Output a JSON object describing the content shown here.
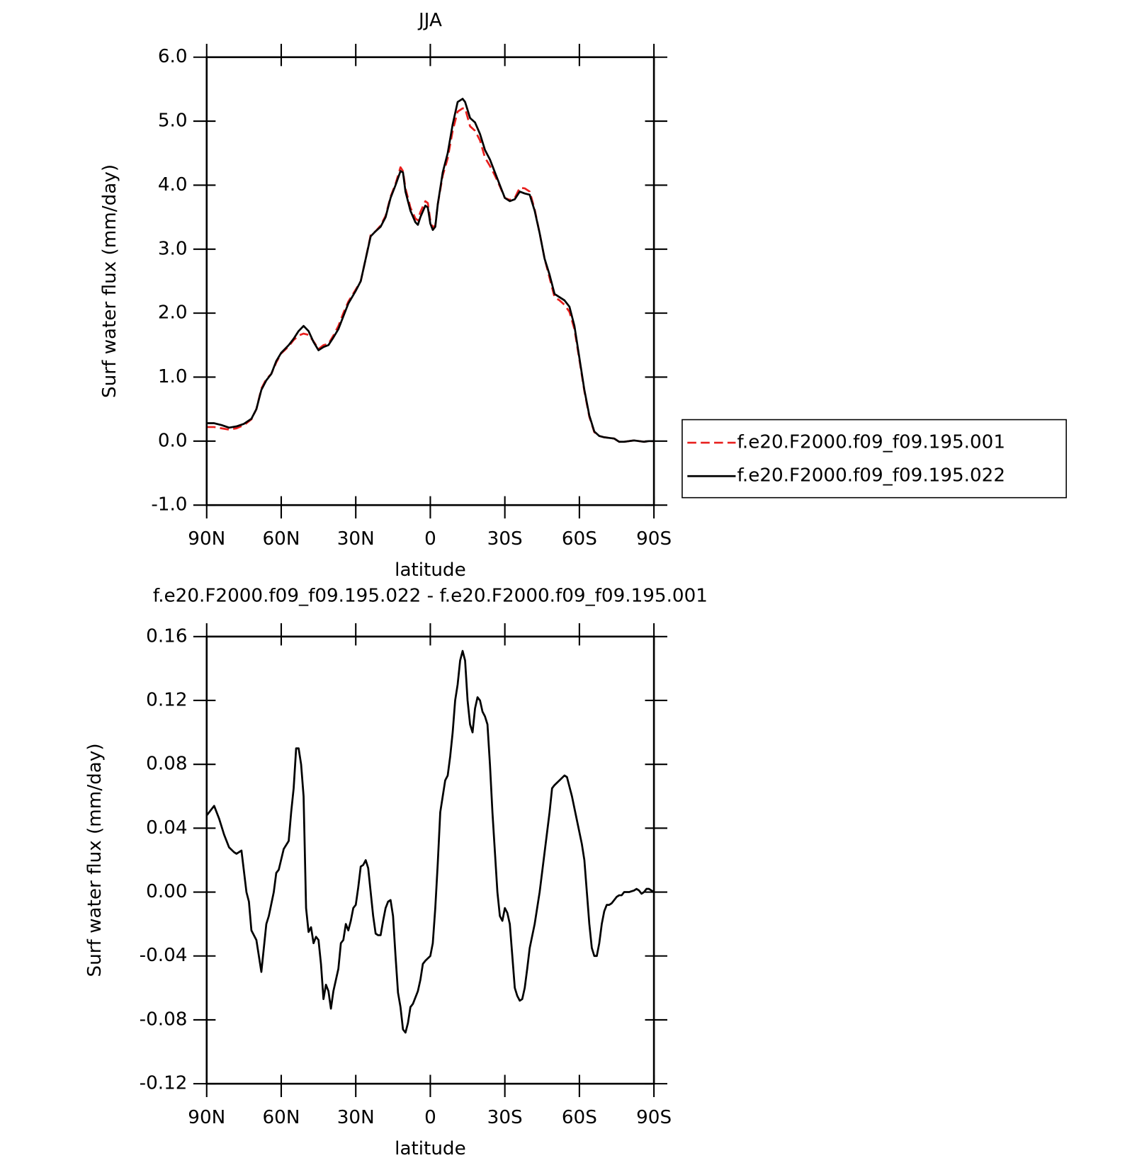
{
  "chart_data": [
    {
      "type": "line",
      "title": "JJA",
      "xlabel": "latitude",
      "ylabel": "Surf water flux (mm/day)",
      "xlim": [
        90,
        -90
      ],
      "xticks": [
        {
          "value": 90,
          "label": "90N"
        },
        {
          "value": 60,
          "label": "60N"
        },
        {
          "value": 30,
          "label": "30N"
        },
        0,
        {
          "value": -30,
          "label": "30S"
        },
        {
          "value": -60,
          "label": "60S"
        },
        {
          "value": -90,
          "label": "90S"
        }
      ],
      "ylim": [
        -1,
        6
      ],
      "yticks": [
        {
          "value": -1,
          "label": "-1.0"
        },
        {
          "value": 0,
          "label": "0.0"
        },
        {
          "value": 1,
          "label": "1.0"
        },
        {
          "value": 2,
          "label": "2.0"
        },
        {
          "value": 3,
          "label": "3.0"
        },
        {
          "value": 4,
          "label": "4.0"
        },
        {
          "value": 5,
          "label": "5.0"
        },
        {
          "value": 6,
          "label": "6.0"
        }
      ],
      "legend": "right",
      "x": [
        90,
        87,
        84,
        81,
        78,
        75,
        72,
        70,
        68,
        66,
        64,
        62,
        60,
        57,
        55,
        53,
        51,
        49,
        47,
        45,
        43,
        41,
        39,
        37,
        35,
        33,
        30,
        28,
        26,
        24,
        22,
        20,
        18,
        16,
        14,
        12,
        11,
        10,
        8,
        6,
        5,
        4,
        2,
        1,
        0,
        -1,
        -2,
        -3,
        -5,
        -7,
        -9,
        -11,
        -13,
        -14,
        -16,
        -18,
        -20,
        -22,
        -24,
        -26,
        -28,
        -30,
        -32,
        -34,
        -36,
        -38,
        -40,
        -42,
        -44,
        -46,
        -48,
        -50,
        -52,
        -54,
        -56,
        -58,
        -60,
        -62,
        -64,
        -66,
        -68,
        -70,
        -72,
        -74,
        -76,
        -78,
        -80,
        -82,
        -84,
        -86,
        -88,
        -90
      ],
      "series": [
        {
          "name": "f.e20.F2000.f09_f09.195.001",
          "color": "#e8201e",
          "linestyle": "dashed",
          "values": [
            0.22,
            0.22,
            0.2,
            0.18,
            0.2,
            0.25,
            0.34,
            0.5,
            0.82,
            0.97,
            1.05,
            1.23,
            1.37,
            1.48,
            1.58,
            1.65,
            1.68,
            1.66,
            1.56,
            1.44,
            1.5,
            1.52,
            1.65,
            1.8,
            2.0,
            2.18,
            2.37,
            2.5,
            2.85,
            3.22,
            3.28,
            3.37,
            3.52,
            3.82,
            4.02,
            4.28,
            4.22,
            3.95,
            3.65,
            3.48,
            3.45,
            3.58,
            3.75,
            3.72,
            3.45,
            3.34,
            3.37,
            3.7,
            4.15,
            4.42,
            4.85,
            5.15,
            5.2,
            5.2,
            4.92,
            4.85,
            4.7,
            4.43,
            4.3,
            4.15,
            3.98,
            3.8,
            3.77,
            3.8,
            3.96,
            3.95,
            3.9,
            3.62,
            3.25,
            2.85,
            2.55,
            2.25,
            2.2,
            2.13,
            2.02,
            1.75,
            1.27,
            0.78,
            0.38,
            0.14,
            0.08,
            0.06,
            0.05,
            0.04,
            -0.01,
            -0.01,
            0,
            0.01,
            0,
            -0.01,
            0,
            0
          ]
        },
        {
          "name": "f.e20.F2000.f09_f09.195.022",
          "color": "#000000",
          "linestyle": "solid",
          "values": [
            0.28,
            0.28,
            0.25,
            0.21,
            0.23,
            0.27,
            0.35,
            0.5,
            0.8,
            0.95,
            1.05,
            1.25,
            1.38,
            1.5,
            1.6,
            1.72,
            1.8,
            1.72,
            1.55,
            1.42,
            1.47,
            1.5,
            1.62,
            1.75,
            1.95,
            2.15,
            2.35,
            2.5,
            2.85,
            3.2,
            3.28,
            3.35,
            3.5,
            3.8,
            4.0,
            4.22,
            4.2,
            3.9,
            3.6,
            3.42,
            3.38,
            3.5,
            3.68,
            3.65,
            3.4,
            3.3,
            3.35,
            3.7,
            4.2,
            4.5,
            4.95,
            5.3,
            5.35,
            5.3,
            5.05,
            4.98,
            4.8,
            4.55,
            4.4,
            4.2,
            4.0,
            3.8,
            3.75,
            3.78,
            3.9,
            3.87,
            3.85,
            3.6,
            3.25,
            2.85,
            2.6,
            2.3,
            2.25,
            2.2,
            2.1,
            1.8,
            1.3,
            0.8,
            0.4,
            0.15,
            0.08,
            0.06,
            0.05,
            0.04,
            -0.01,
            -0.01,
            0,
            0.01,
            0,
            -0.01,
            0,
            0
          ]
        }
      ]
    },
    {
      "type": "line",
      "title": "f.e20.F2000.f09_f09.195.022 - f.e20.F2000.f09_f09.195.001",
      "xlabel": "latitude",
      "ylabel": "Surf water flux (mm/day)",
      "xlim": [
        90,
        -90
      ],
      "xticks": [
        {
          "value": 90,
          "label": "90N"
        },
        {
          "value": 60,
          "label": "60N"
        },
        {
          "value": 30,
          "label": "30N"
        },
        0,
        {
          "value": -30,
          "label": "30S"
        },
        {
          "value": -60,
          "label": "60S"
        },
        {
          "value": -90,
          "label": "90S"
        }
      ],
      "ylim": [
        -0.12,
        0.16
      ],
      "yticks": [
        -0.12,
        -0.08,
        -0.04,
        {
          "value": 0,
          "label": "0.00"
        },
        0.04,
        0.08,
        0.12,
        0.16
      ],
      "x": [
        90,
        88,
        87,
        85,
        83,
        81,
        79,
        78,
        76,
        74,
        73,
        72,
        70,
        68,
        66,
        65,
        63,
        62,
        61,
        59,
        57,
        56,
        55,
        54,
        53,
        52,
        51,
        50,
        49,
        48,
        47,
        46,
        45,
        44,
        43,
        42,
        41,
        40,
        39,
        37,
        36,
        35,
        34,
        33,
        32,
        31,
        30,
        29,
        28,
        27,
        26,
        25,
        24,
        23,
        22,
        21,
        20,
        19,
        18,
        17,
        16,
        15,
        14,
        13,
        12,
        11,
        10,
        9,
        8,
        7,
        5,
        4,
        3,
        2,
        0,
        -1,
        -2,
        -3,
        -4,
        -5,
        -6,
        -7,
        -8,
        -9,
        -10,
        -11,
        -12,
        -13,
        -14,
        -15,
        -16,
        -17,
        -18,
        -19,
        -20,
        -21,
        -22,
        -23,
        -24,
        -25,
        -26,
        -27,
        -28,
        -29,
        -30,
        -31,
        -32,
        -33,
        -34,
        -35,
        -36,
        -37,
        -38,
        -39,
        -40,
        -42,
        -44,
        -46,
        -48,
        -49,
        -50,
        -52,
        -54,
        -55,
        -57,
        -59,
        -61,
        -62,
        -63,
        -64,
        -65,
        -66,
        -67,
        -68,
        -69,
        -70,
        -71,
        -72,
        -73,
        -74,
        -75,
        -76,
        -77,
        -78,
        -80,
        -82,
        -83,
        -84,
        -85,
        -86,
        -87,
        -88,
        -90
      ],
      "series": [
        {
          "color": "#000000",
          "linestyle": "solid",
          "values": [
            0.048,
            0.052,
            0.054,
            0.046,
            0.036,
            0.028,
            0.025,
            0.024,
            0.026,
            0.0,
            -0.006,
            -0.024,
            -0.03,
            -0.05,
            -0.02,
            -0.015,
            0.0,
            0.012,
            0.014,
            0.027,
            0.032,
            0.05,
            0.065,
            0.09,
            0.09,
            0.08,
            0.06,
            -0.01,
            -0.025,
            -0.022,
            -0.032,
            -0.028,
            -0.03,
            -0.045,
            -0.067,
            -0.058,
            -0.062,
            -0.073,
            -0.062,
            -0.048,
            -0.032,
            -0.03,
            -0.02,
            -0.024,
            -0.018,
            -0.01,
            -0.008,
            0.003,
            0.016,
            0.017,
            0.02,
            0.015,
            0.0,
            -0.015,
            -0.026,
            -0.027,
            -0.027,
            -0.018,
            -0.01,
            -0.006,
            -0.005,
            -0.015,
            -0.04,
            -0.063,
            -0.072,
            -0.086,
            -0.088,
            -0.082,
            -0.072,
            -0.07,
            -0.062,
            -0.055,
            -0.045,
            -0.043,
            -0.04,
            -0.032,
            -0.01,
            0.018,
            0.05,
            0.06,
            0.07,
            0.073,
            0.085,
            0.1,
            0.12,
            0.13,
            0.145,
            0.151,
            0.145,
            0.12,
            0.105,
            0.1,
            0.115,
            0.122,
            0.12,
            0.113,
            0.11,
            0.105,
            0.08,
            0.05,
            0.025,
            0.0,
            -0.015,
            -0.018,
            -0.01,
            -0.013,
            -0.02,
            -0.04,
            -0.06,
            -0.065,
            -0.068,
            -0.067,
            -0.06,
            -0.048,
            -0.035,
            -0.02,
            0.0,
            0.025,
            0.05,
            0.065,
            0.067,
            0.07,
            0.073,
            0.072,
            0.06,
            0.045,
            0.03,
            0.02,
            0.0,
            -0.02,
            -0.035,
            -0.04,
            -0.04,
            -0.032,
            -0.02,
            -0.012,
            -0.008,
            -0.008,
            -0.007,
            -0.005,
            -0.003,
            -0.002,
            -0.002,
            0.0,
            0.0,
            0.001,
            0.002,
            0.001,
            -0.001,
            0.0,
            0.002,
            0.002,
            0.0
          ]
        }
      ]
    }
  ]
}
